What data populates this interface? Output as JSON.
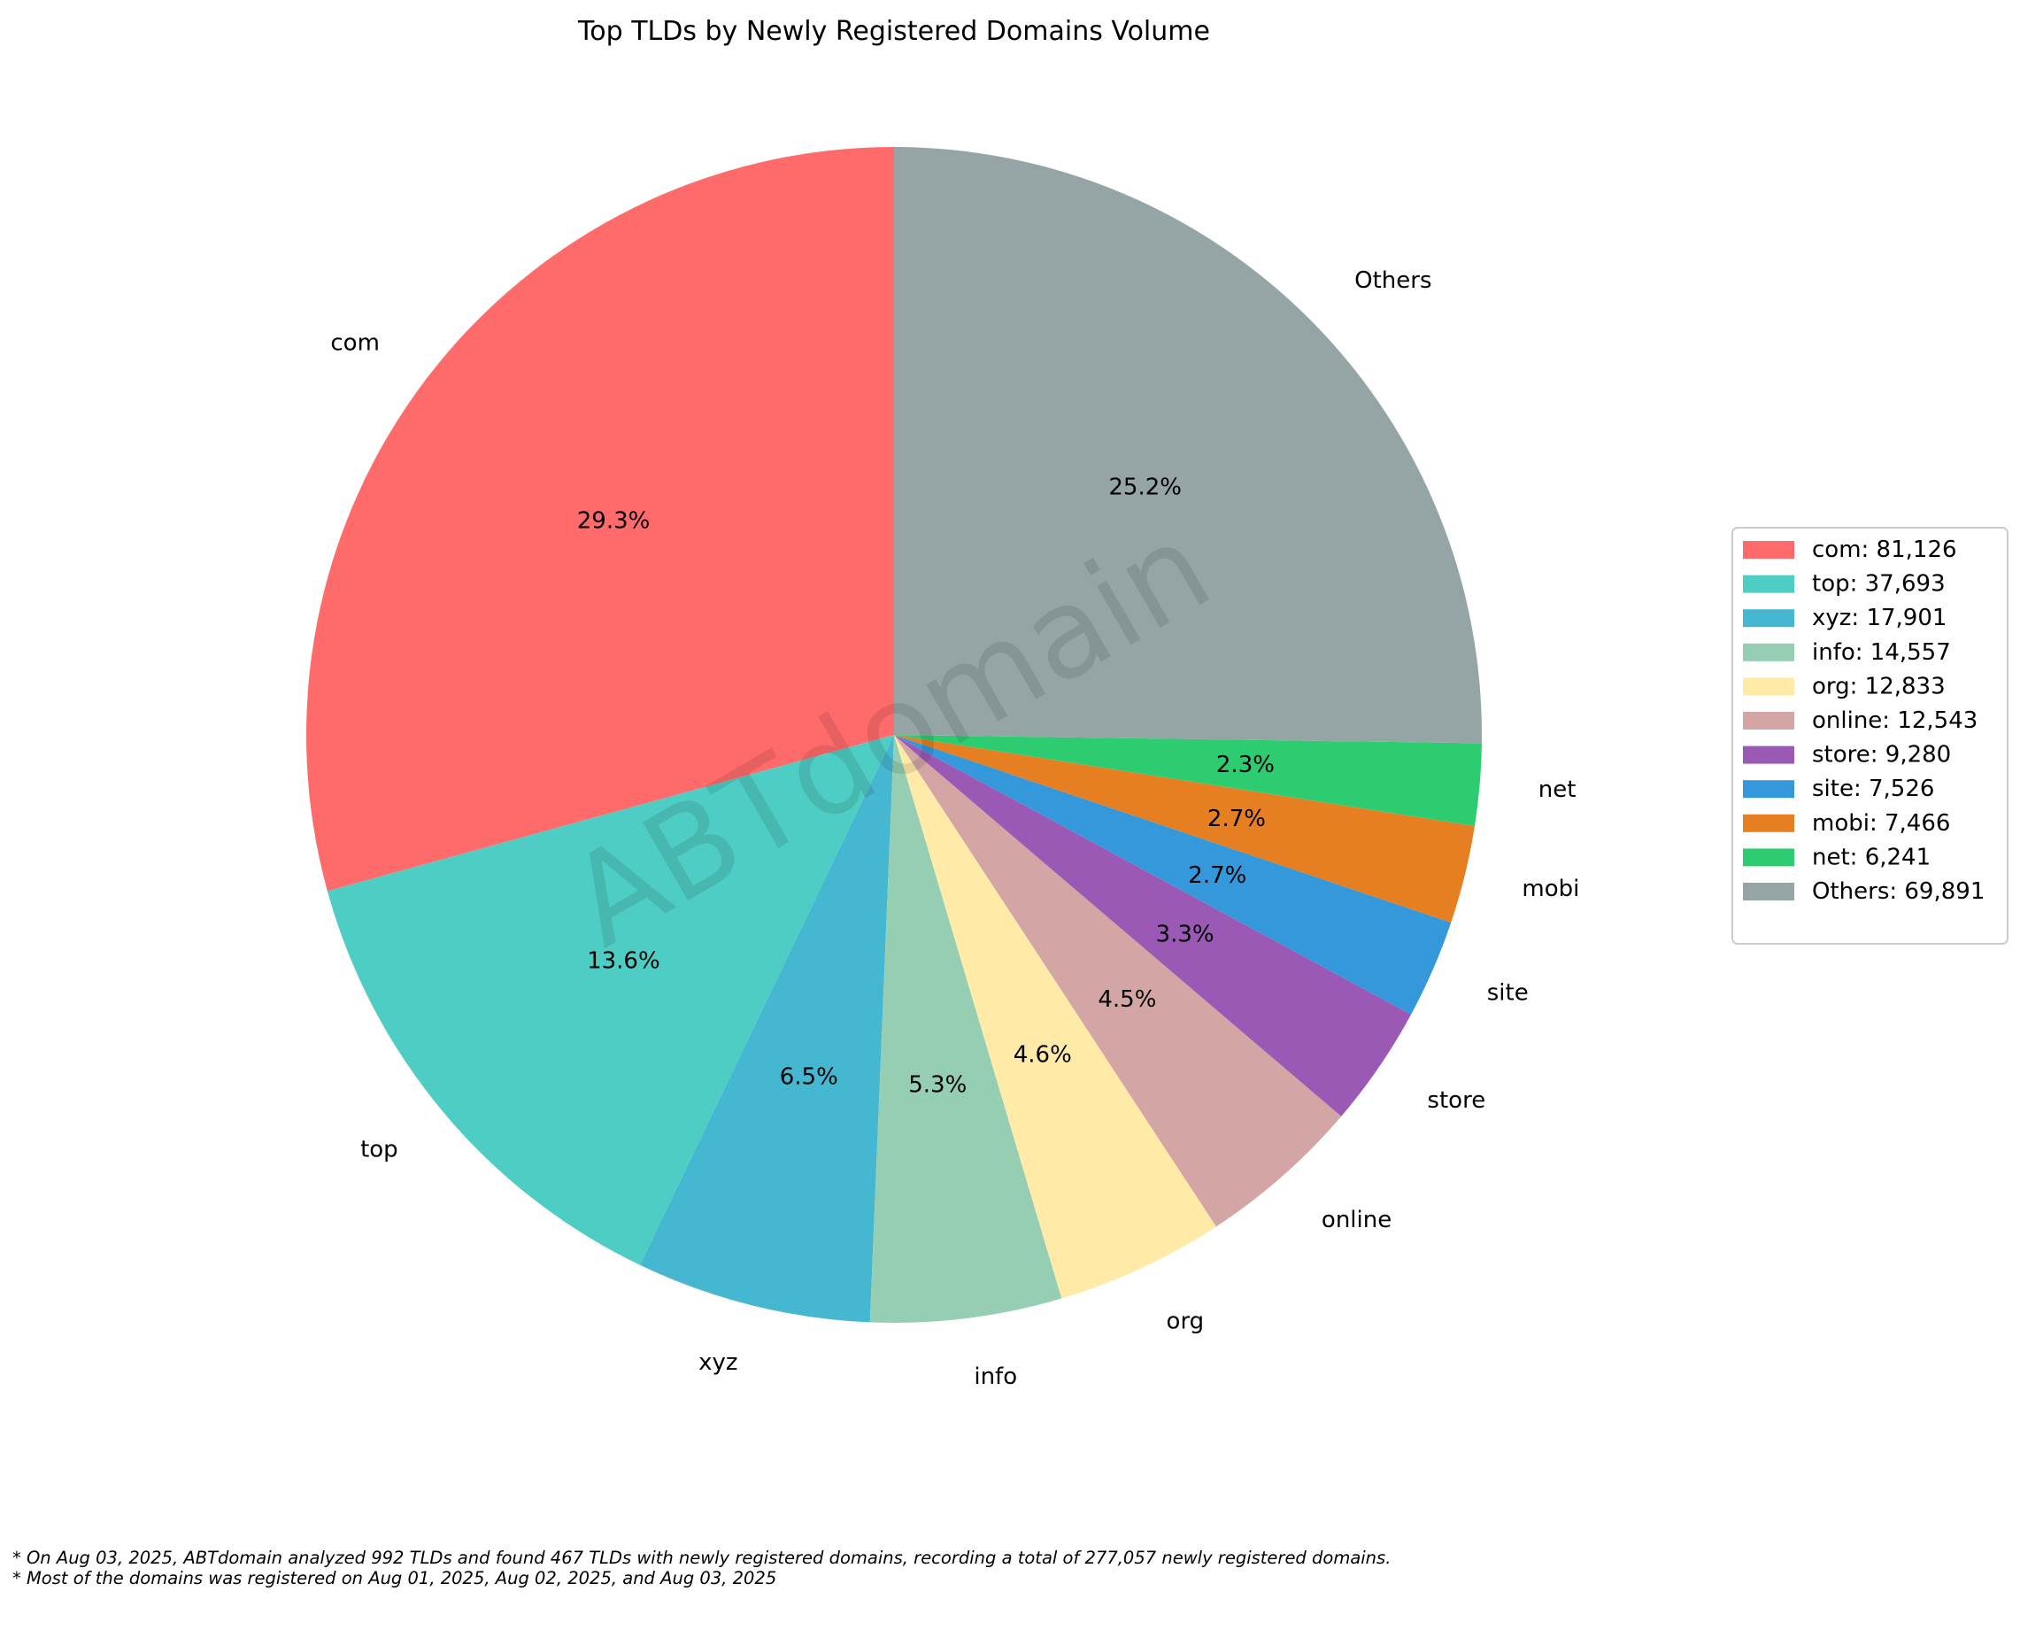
{
  "chart_data": {
    "type": "pie",
    "title": "Top TLDs by Newly Registered Domains Volume",
    "start_angle_deg": 90,
    "direction": "counterclockwise",
    "watermark": "ABTdomain",
    "slices": [
      {
        "label": "com",
        "value": 81126,
        "percent_label": "29.3%",
        "legend": "com: 81,126",
        "color": "#FF6B6B"
      },
      {
        "label": "top",
        "value": 37693,
        "percent_label": "13.6%",
        "legend": "top: 37,693",
        "color": "#4ECDC4"
      },
      {
        "label": "xyz",
        "value": 17901,
        "percent_label": "6.5%",
        "legend": "xyz: 17,901",
        "color": "#45B7D1"
      },
      {
        "label": "info",
        "value": 14557,
        "percent_label": "5.3%",
        "legend": "info: 14,557",
        "color": "#96CEB4"
      },
      {
        "label": "org",
        "value": 12833,
        "percent_label": "4.6%",
        "legend": "org: 12,833",
        "color": "#FFEAA7"
      },
      {
        "label": "online",
        "value": 12543,
        "percent_label": "4.5%",
        "legend": "online: 12,543",
        "color": "#D4A5A5"
      },
      {
        "label": "store",
        "value": 9280,
        "percent_label": "3.3%",
        "legend": "store: 9,280",
        "color": "#9B59B6"
      },
      {
        "label": "site",
        "value": 7526,
        "percent_label": "2.7%",
        "legend": "site: 7,526",
        "color": "#3498DB"
      },
      {
        "label": "mobi",
        "value": 7466,
        "percent_label": "2.7%",
        "legend": "mobi: 7,466",
        "color": "#E67E22"
      },
      {
        "label": "net",
        "value": 6241,
        "percent_label": "2.3%",
        "legend": "net: 6,241",
        "color": "#2ECC71"
      },
      {
        "label": "Others",
        "value": 69891,
        "percent_label": "25.2%",
        "legend": "Others: 69,891",
        "color": "#95A5A6"
      }
    ],
    "legend_position": "right"
  },
  "footnotes": [
    "* On Aug 03, 2025, ABTdomain analyzed 992 TLDs and found 467 TLDs with newly registered domains, recording a total of 277,057 newly registered domains.",
    "* Most of the domains was registered on Aug 01, 2025, Aug 02, 2025, and Aug 03, 2025"
  ]
}
